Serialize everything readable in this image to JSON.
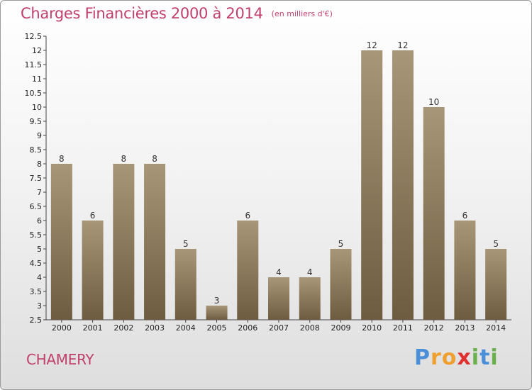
{
  "title": "Charges Financières 2000 à 2014",
  "unit": "(en milliers d'€)",
  "commune": "CHAMERY",
  "logo": {
    "letters": [
      {
        "ch": "P",
        "color": "#4a8fd8"
      },
      {
        "ch": "r",
        "color": "#f0a030"
      },
      {
        "ch": "o",
        "color": "#f0a030"
      },
      {
        "ch": "x",
        "color": "#e03030"
      },
      {
        "ch": "i",
        "color": "#6ab04c"
      },
      {
        "ch": "t",
        "color": "#4a8fd8"
      },
      {
        "ch": "i",
        "color": "#6ab04c"
      }
    ]
  },
  "colors": {
    "bar_top": "#a89678",
    "bar_bottom": "#6e5c40",
    "label": "#333333",
    "accent": "#c0406a"
  },
  "chart_data": {
    "type": "bar",
    "categories": [
      "2000",
      "2001",
      "2002",
      "2003",
      "2004",
      "2005",
      "2006",
      "2007",
      "2008",
      "2009",
      "2010",
      "2011",
      "2012",
      "2013",
      "2014"
    ],
    "values": [
      8,
      6,
      8,
      8,
      5,
      3,
      6,
      4,
      4,
      5,
      12,
      12,
      10,
      6,
      5
    ],
    "data_labels": [
      "8",
      "6",
      "8",
      "8",
      "5",
      "3",
      "6",
      "4",
      "4",
      "5",
      "12",
      "12",
      "10",
      "6",
      "5"
    ],
    "ylim": [
      2.5,
      12.5
    ],
    "yticks": [
      2.5,
      3,
      3.5,
      4,
      4.5,
      5,
      5.5,
      6,
      6.5,
      7,
      7.5,
      8,
      8.5,
      9,
      9.5,
      10,
      10.5,
      11,
      11.5,
      12,
      12.5
    ],
    "ytick_labels": [
      "2.5",
      "3",
      "3.5",
      "4",
      "4.5",
      "5",
      "5.5",
      "6",
      "6.5",
      "7",
      "7.5",
      "8",
      "8.5",
      "9",
      "9.5",
      "10",
      "10.5",
      "11",
      "11.5",
      "12",
      "12.5"
    ],
    "grid": false,
    "title": "Charges Financières 2000 à 2014",
    "xlabel": "",
    "ylabel": ""
  }
}
